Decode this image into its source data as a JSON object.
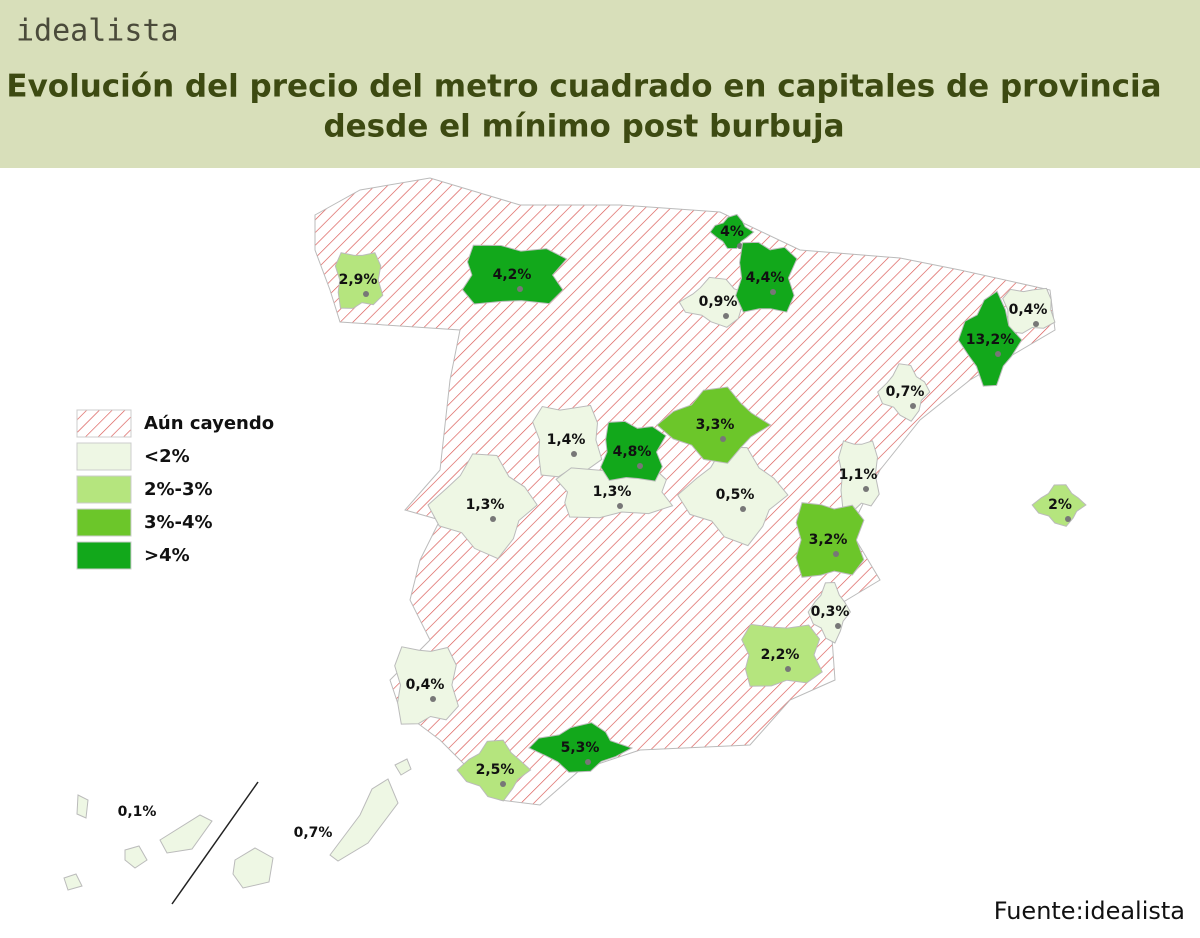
{
  "header": {
    "brand": "idealista",
    "title": [
      "Evolución del precio del metro cuadrado en capitales de provincia",
      "desde el mínimo post burbuja"
    ]
  },
  "legend": {
    "items": [
      {
        "label": "Aún cayendo",
        "pattern": "hatch",
        "color": "#d9534f"
      },
      {
        "label": "<2%",
        "color": "#eef7e4",
        "regions": [
          "0,9%",
          "0,4%",
          "0,7%",
          "1,4%",
          "1,3%",
          "1,3%",
          "0,5%",
          "1,1%",
          "0,3%",
          "0,4%",
          "0,1%",
          "0,7%"
        ]
      },
      {
        "label": "2%-3%",
        "color": "#b5e57e",
        "regions": [
          "2,9%",
          "2%",
          "2,2%",
          "2,5%"
        ]
      },
      {
        "label": "3%-4%",
        "color": "#6cc62a",
        "regions": [
          "3,3%",
          "3,2%"
        ]
      },
      {
        "label": ">4%",
        "color": "#12a81b",
        "regions": [
          "4,2%",
          "4%",
          "4,4%",
          "13,2%",
          "4,8%",
          "5,3%"
        ]
      }
    ]
  },
  "source": "Fuente:idealista"
}
